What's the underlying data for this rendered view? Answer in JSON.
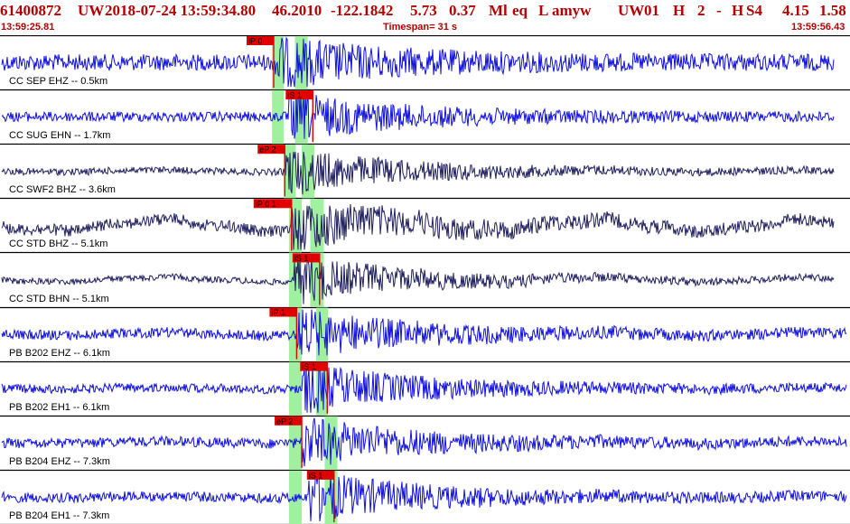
{
  "header": {
    "event_id": "61400872",
    "network": "UW",
    "origin_datetime": "2018-07-24 13:59:34.80",
    "latitude": "46.2010",
    "longitude": "-122.1842",
    "depth": "5.73",
    "magnitude": "0.37",
    "magnitude_type": "Ml",
    "event_type": "eq",
    "flag": "L",
    "author": "amyw",
    "source": "UW",
    "version": "01",
    "quality_code": "H",
    "num_a": "2",
    "dash": "-",
    "hypo_type": "H",
    "review": "S4",
    "rms": "4.15",
    "err": "1.58",
    "start_time": "13:59:25.81",
    "timespan": "Timespan=  31 s",
    "end_time": "13:59:56.43"
  },
  "channels": [
    {
      "label": "CC SEP EHZ -- 0.5km",
      "color": "#1010e0",
      "amp": 0.6,
      "lowfreq": 0,
      "picks": [
        {
          "text": "iP 0",
          "t": 0.322,
          "kind": "P",
          "green": [
            0.32,
            0.334
          ],
          "green2": [
            0.347,
            0.362
          ]
        }
      ]
    },
    {
      "label": "CC SUG EHN -- 1.7km",
      "color": "#1010e0",
      "amp": 0.25,
      "lowfreq": 0,
      "picks": [
        {
          "text": "iS 1",
          "t": 0.368,
          "kind": "S",
          "green": [
            0.32,
            0.334
          ],
          "green2": [
            0.347,
            0.362
          ]
        }
      ]
    },
    {
      "label": "CC SWF2 BHZ -- 3.6km",
      "color": "#202060",
      "amp": 0.08,
      "lowfreq": 0.05,
      "picks": [
        {
          "text": "eP 2",
          "t": 0.335,
          "kind": "P",
          "green": [
            0.334,
            0.348
          ],
          "green2": [
            0.355,
            0.37
          ]
        }
      ]
    },
    {
      "label": "CC STD BHZ -- 5.1km",
      "color": "#202060",
      "amp": 0.35,
      "lowfreq": 0.3,
      "picks": [
        {
          "text": "iP 0 1",
          "t": 0.343,
          "kind": "P",
          "green": [
            0.34,
            0.355
          ],
          "green2": [
            0.365,
            0.381
          ]
        }
      ]
    },
    {
      "label": "CC STD BHN -- 5.1km",
      "color": "#202060",
      "amp": 0.05,
      "lowfreq": 0.12,
      "picks": [
        {
          "text": "iS 1",
          "t": 0.376,
          "kind": "S",
          "green": [
            0.34,
            0.355
          ],
          "green2": [
            0.365,
            0.381
          ]
        }
      ]
    },
    {
      "label": "PB B202 EHZ -- 6.1km",
      "color": "#1010e0",
      "amp": 0.25,
      "lowfreq": 0.08,
      "picks": [
        {
          "text": "iP 1",
          "t": 0.349,
          "kind": "P",
          "green": [
            0.34,
            0.355
          ],
          "green2": [
            0.372,
            0.386
          ]
        }
      ]
    },
    {
      "label": "PB B202 EH1 -- 6.1km",
      "color": "#1010e0",
      "amp": 0.2,
      "lowfreq": 0.05,
      "picks": [
        {
          "text": "iS 1",
          "t": 0.385,
          "kind": "S",
          "green": [
            0.34,
            0.355
          ],
          "green2": [
            0.372,
            0.386
          ]
        }
      ]
    },
    {
      "label": "PB B204 EHZ -- 7.3km",
      "color": "#1010e0",
      "amp": 0.25,
      "lowfreq": 0.06,
      "picks": [
        {
          "text": "eP 2",
          "t": 0.355,
          "kind": "P",
          "green": [
            0.34,
            0.355
          ],
          "green2": [
            0.382,
            0.397
          ]
        }
      ]
    },
    {
      "label": "PB B204 EH1 -- 7.3km",
      "color": "#1010e0",
      "amp": 0.25,
      "lowfreq": 0.05,
      "picks": [
        {
          "text": "iS 1",
          "t": 0.393,
          "kind": "S",
          "green": [
            0.34,
            0.355
          ],
          "green2": [
            0.382,
            0.397
          ]
        }
      ]
    }
  ],
  "colors": {
    "header_text": "#b40000",
    "pick_flag": "#e00000",
    "pick_window": "#a0f0a0",
    "separator": "#000000",
    "label_text": "#000000"
  }
}
